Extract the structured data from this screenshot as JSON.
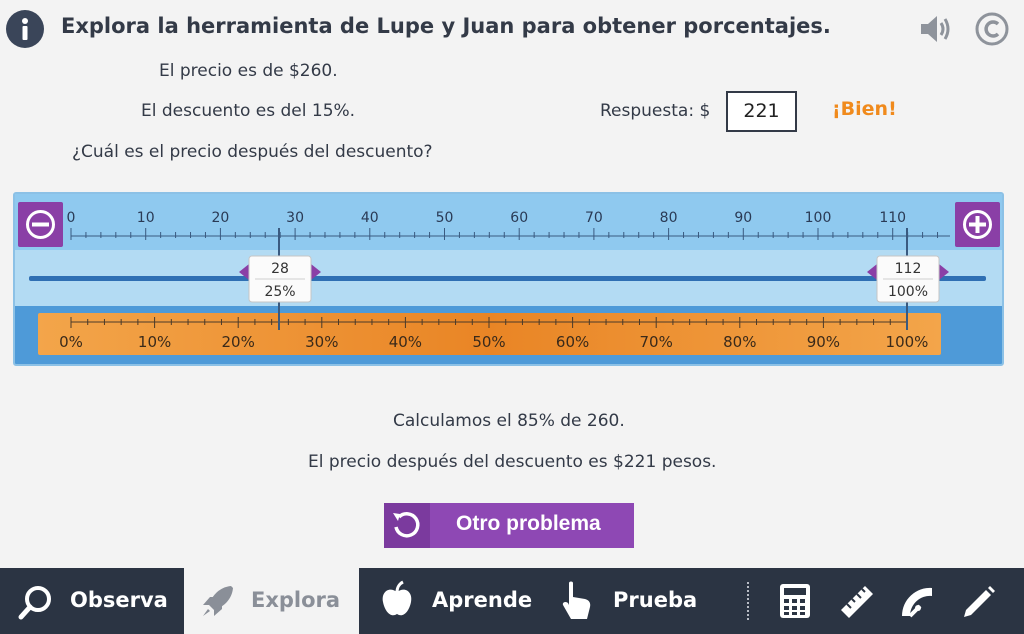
{
  "header": {
    "title": "Explora la herramienta de Lupe y Juan para obtener porcentajes."
  },
  "problem": {
    "line1": "El precio es de  $260.",
    "line2": "El descuento es del  15%.",
    "line3": "¿Cuál es el precio después del descuento?",
    "answer_label": "Respuesta:  $",
    "answer_value": "221",
    "feedback": "¡Bien!"
  },
  "tool": {
    "value_ticks": [
      "0",
      "10",
      "20",
      "30",
      "40",
      "50",
      "60",
      "70",
      "80",
      "90",
      "100",
      "110"
    ],
    "percent_ticks": [
      "0%",
      "10%",
      "20%",
      "30%",
      "40%",
      "50%",
      "60%",
      "70%",
      "80%",
      "90%",
      "100%"
    ],
    "handle_left": {
      "value": "28",
      "percent": "25%"
    },
    "handle_right": {
      "value": "112",
      "percent": "100%"
    }
  },
  "result": {
    "line1": "Calculamos el  85%  de 260.",
    "line2": "El precio después del descuento es  $221  pesos."
  },
  "other_button": {
    "label": "Otro problema"
  },
  "nav": {
    "observa": "Observa",
    "explora": "Explora",
    "aprende": "Aprende",
    "prueba": "Prueba"
  },
  "colors": {
    "accent_purple": "#8e48b4",
    "feedback_orange": "#f08a1c",
    "navbar": "#2b3443",
    "percent_bar": "#f0a040"
  }
}
